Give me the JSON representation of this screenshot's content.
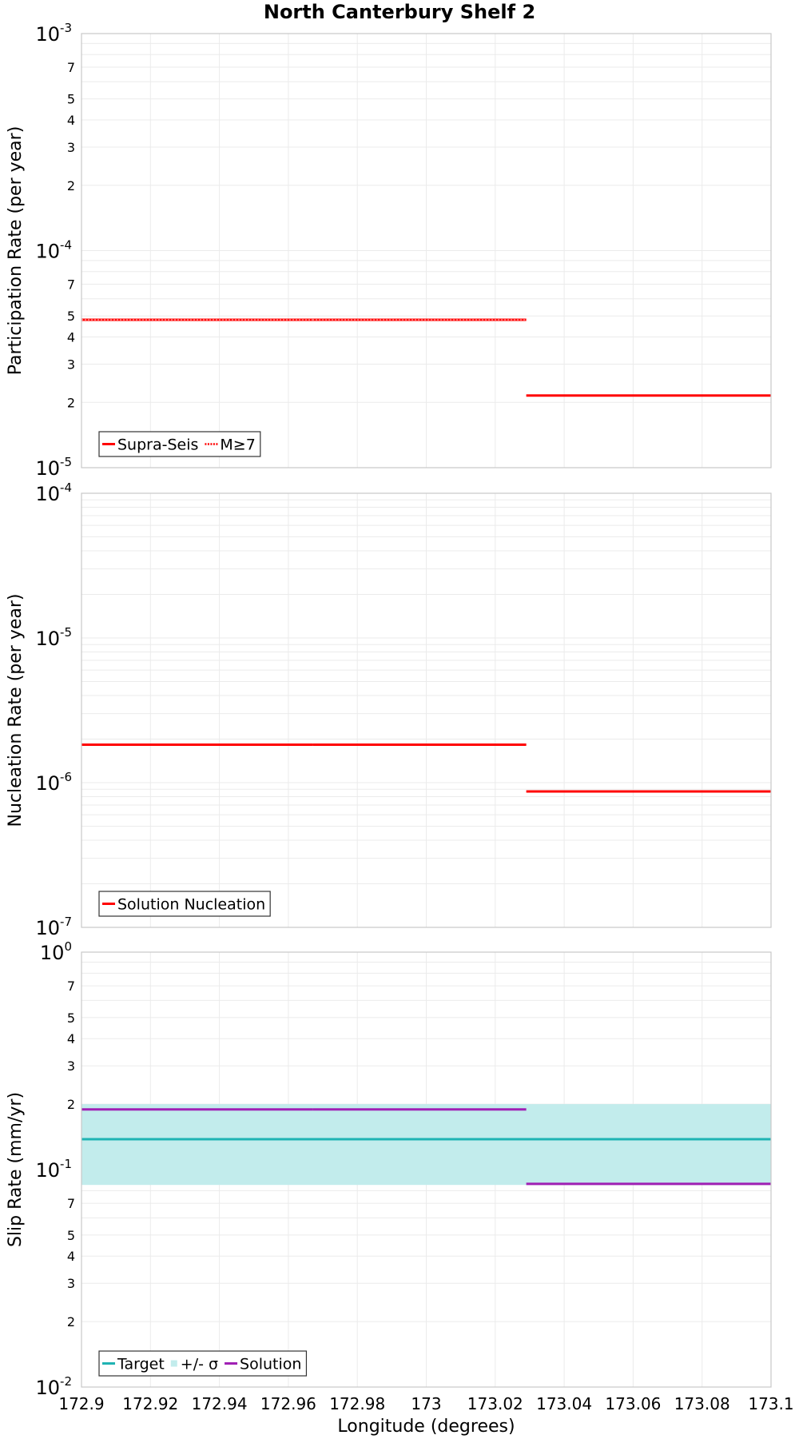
{
  "chart_data": [
    {
      "type": "line",
      "title": "North Canterbury Shelf 2",
      "ylabel": "Participation Rate (per year)",
      "yscale": "log",
      "ylim": [
        1e-05,
        0.001
      ],
      "y_major_ticks": [
        {
          "base": "10",
          "exp": "-3",
          "value": 0.001
        },
        {
          "base": "10",
          "exp": "-4",
          "value": 0.0001
        },
        {
          "base": "10",
          "exp": "-5",
          "value": 1e-05
        }
      ],
      "y_minor_ticks": [
        {
          "label": "7",
          "value": 0.0007
        },
        {
          "label": "5",
          "value": 0.0005
        },
        {
          "label": "4",
          "value": 0.0004
        },
        {
          "label": "3",
          "value": 0.0003
        },
        {
          "label": "2",
          "value": 0.0002
        },
        {
          "label": "7",
          "value": 7e-05
        },
        {
          "label": "5",
          "value": 5e-05
        },
        {
          "label": "4",
          "value": 4e-05
        },
        {
          "label": "3",
          "value": 3e-05
        },
        {
          "label": "2",
          "value": 2e-05
        }
      ],
      "legend": {
        "position": "bottom-left"
      },
      "series": [
        {
          "name": "Supra-Seis",
          "style": "solid",
          "color": "#ff0000",
          "segments": [
            [
              172.9,
              172.967,
              4.8e-05
            ],
            [
              172.967,
              173.029,
              4.8e-05
            ],
            [
              173.029,
              173.1,
              2.15e-05
            ]
          ]
        },
        {
          "name": "M≥7",
          "style": "dotted",
          "color": "#ff0000",
          "segments": [
            [
              172.9,
              172.967,
              4.8e-05
            ],
            [
              172.967,
              173.029,
              4.8e-05
            ]
          ]
        }
      ]
    },
    {
      "type": "line",
      "ylabel": "Nucleation Rate (per year)",
      "yscale": "log",
      "ylim": [
        1e-07,
        0.0001
      ],
      "y_major_ticks": [
        {
          "base": "10",
          "exp": "-4",
          "value": 0.0001
        },
        {
          "base": "10",
          "exp": "-5",
          "value": 1e-05
        },
        {
          "base": "10",
          "exp": "-6",
          "value": 1e-06
        },
        {
          "base": "10",
          "exp": "-7",
          "value": 1e-07
        }
      ],
      "y_minor_ticks": [],
      "legend": {
        "position": "bottom-left"
      },
      "series": [
        {
          "name": "Solution Nucleation",
          "style": "solid",
          "color": "#ff0000",
          "segments": [
            [
              172.9,
              172.967,
              1.83e-06
            ],
            [
              172.967,
              173.029,
              1.83e-06
            ],
            [
              173.029,
              173.1,
              8.7e-07
            ]
          ]
        }
      ]
    },
    {
      "type": "line",
      "ylabel": "Slip Rate (mm/yr)",
      "xlabel": "Longitude (degrees)",
      "yscale": "log",
      "ylim": [
        0.01,
        1
      ],
      "y_major_ticks": [
        {
          "base": "10",
          "exp": "0",
          "value": 1
        },
        {
          "base": "10",
          "exp": "-1",
          "value": 0.1
        },
        {
          "base": "10",
          "exp": "-2",
          "value": 0.01
        }
      ],
      "y_minor_ticks": [
        {
          "label": "7",
          "value": 0.7
        },
        {
          "label": "5",
          "value": 0.5
        },
        {
          "label": "4",
          "value": 0.4
        },
        {
          "label": "3",
          "value": 0.3
        },
        {
          "label": "2",
          "value": 0.2
        },
        {
          "label": "7",
          "value": 0.07
        },
        {
          "label": "5",
          "value": 0.05
        },
        {
          "label": "4",
          "value": 0.04
        },
        {
          "label": "3",
          "value": 0.03
        },
        {
          "label": "2",
          "value": 0.02
        }
      ],
      "legend": {
        "position": "bottom-left"
      },
      "band": {
        "name": "+/- σ",
        "color": "#c2ecec",
        "x": [
          172.9,
          173.1
        ],
        "y": [
          0.085,
          0.2
        ]
      },
      "series": [
        {
          "name": "Target",
          "style": "solid",
          "color": "#1fb3b3",
          "segments": [
            [
              172.9,
              173.1,
              0.138
            ]
          ]
        },
        {
          "name": "Solution",
          "style": "solid",
          "color": "#a020b4",
          "segments": [
            [
              172.9,
              172.967,
              0.189
            ],
            [
              172.967,
              173.029,
              0.189
            ],
            [
              173.029,
              173.1,
              0.086
            ]
          ]
        }
      ]
    }
  ],
  "x_axis": {
    "label": "Longitude (degrees)",
    "xlim": [
      172.9,
      173.1
    ],
    "ticks": [
      {
        "label": "172.9",
        "value": 172.9
      },
      {
        "label": "172.92",
        "value": 172.92
      },
      {
        "label": "172.94",
        "value": 172.94
      },
      {
        "label": "172.96",
        "value": 172.96
      },
      {
        "label": "172.98",
        "value": 172.98
      },
      {
        "label": "173",
        "value": 173.0
      },
      {
        "label": "173.02",
        "value": 173.02
      },
      {
        "label": "173.04",
        "value": 173.04
      },
      {
        "label": "173.06",
        "value": 173.06
      },
      {
        "label": "173.08",
        "value": 173.08
      },
      {
        "label": "173.1",
        "value": 173.1
      }
    ]
  }
}
